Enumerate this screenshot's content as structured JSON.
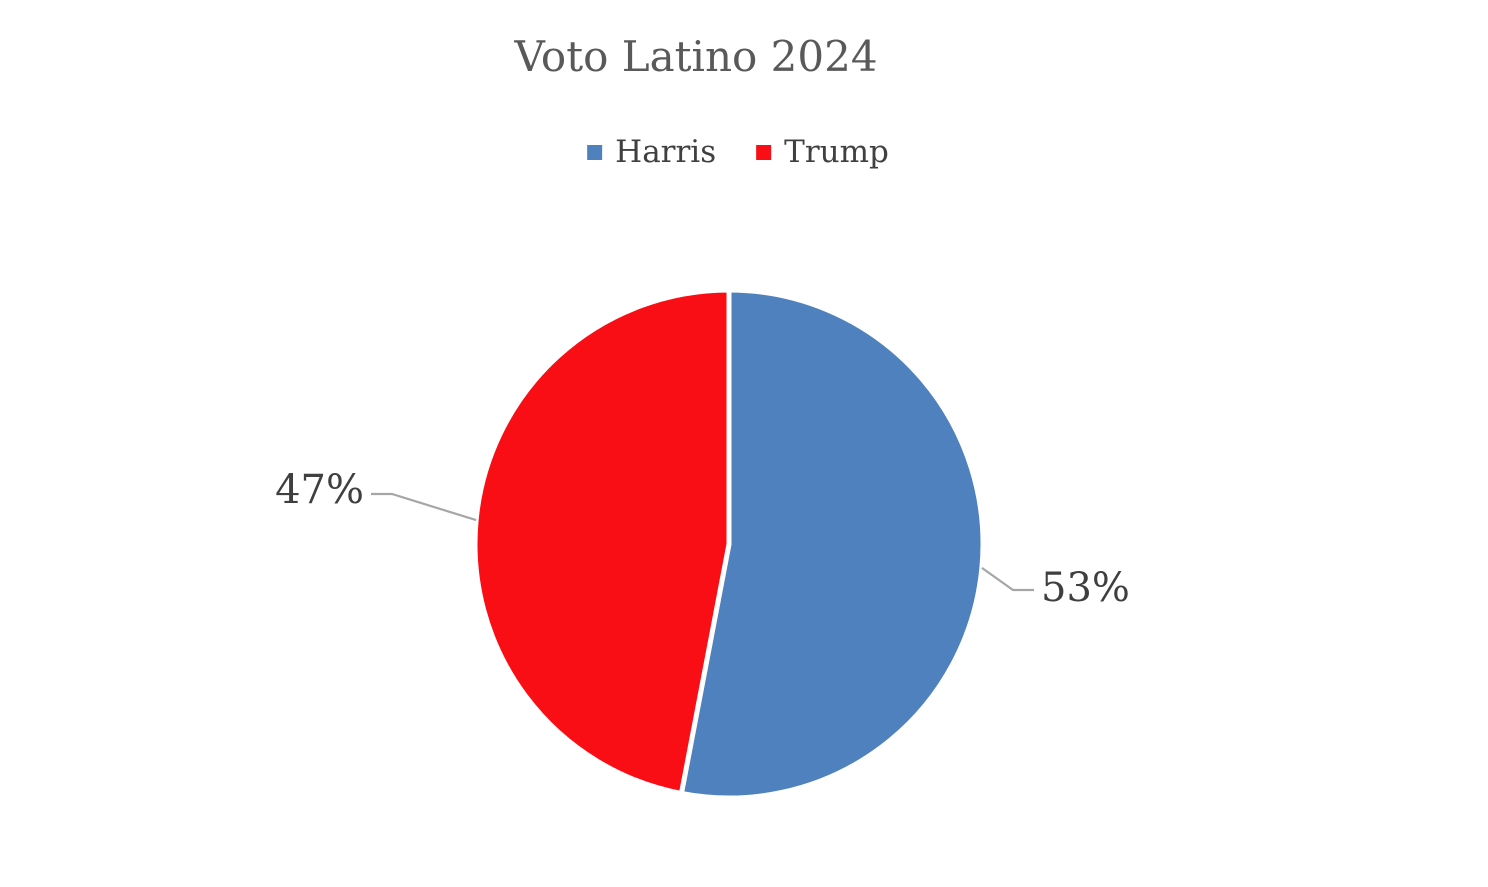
{
  "page": {
    "background": "#ffffff"
  },
  "chart_data": {
    "type": "pie",
    "title": "Voto Latino 2024",
    "legend_position": "top",
    "direction": "clockwise",
    "start_angle_deg": 0,
    "slices": [
      {
        "label": "Harris",
        "value": 53,
        "display": "53%",
        "color": "#4E81BD"
      },
      {
        "label": "Trump",
        "value": 47,
        "display": "47%",
        "color": "#FA0E15"
      }
    ],
    "colors": {
      "title_text": "#595959",
      "legend_text": "#404040",
      "data_label_text": "#3F3F3F",
      "leader_line": "#A6A6A6",
      "slice_separator": "#FFFFFF"
    }
  }
}
